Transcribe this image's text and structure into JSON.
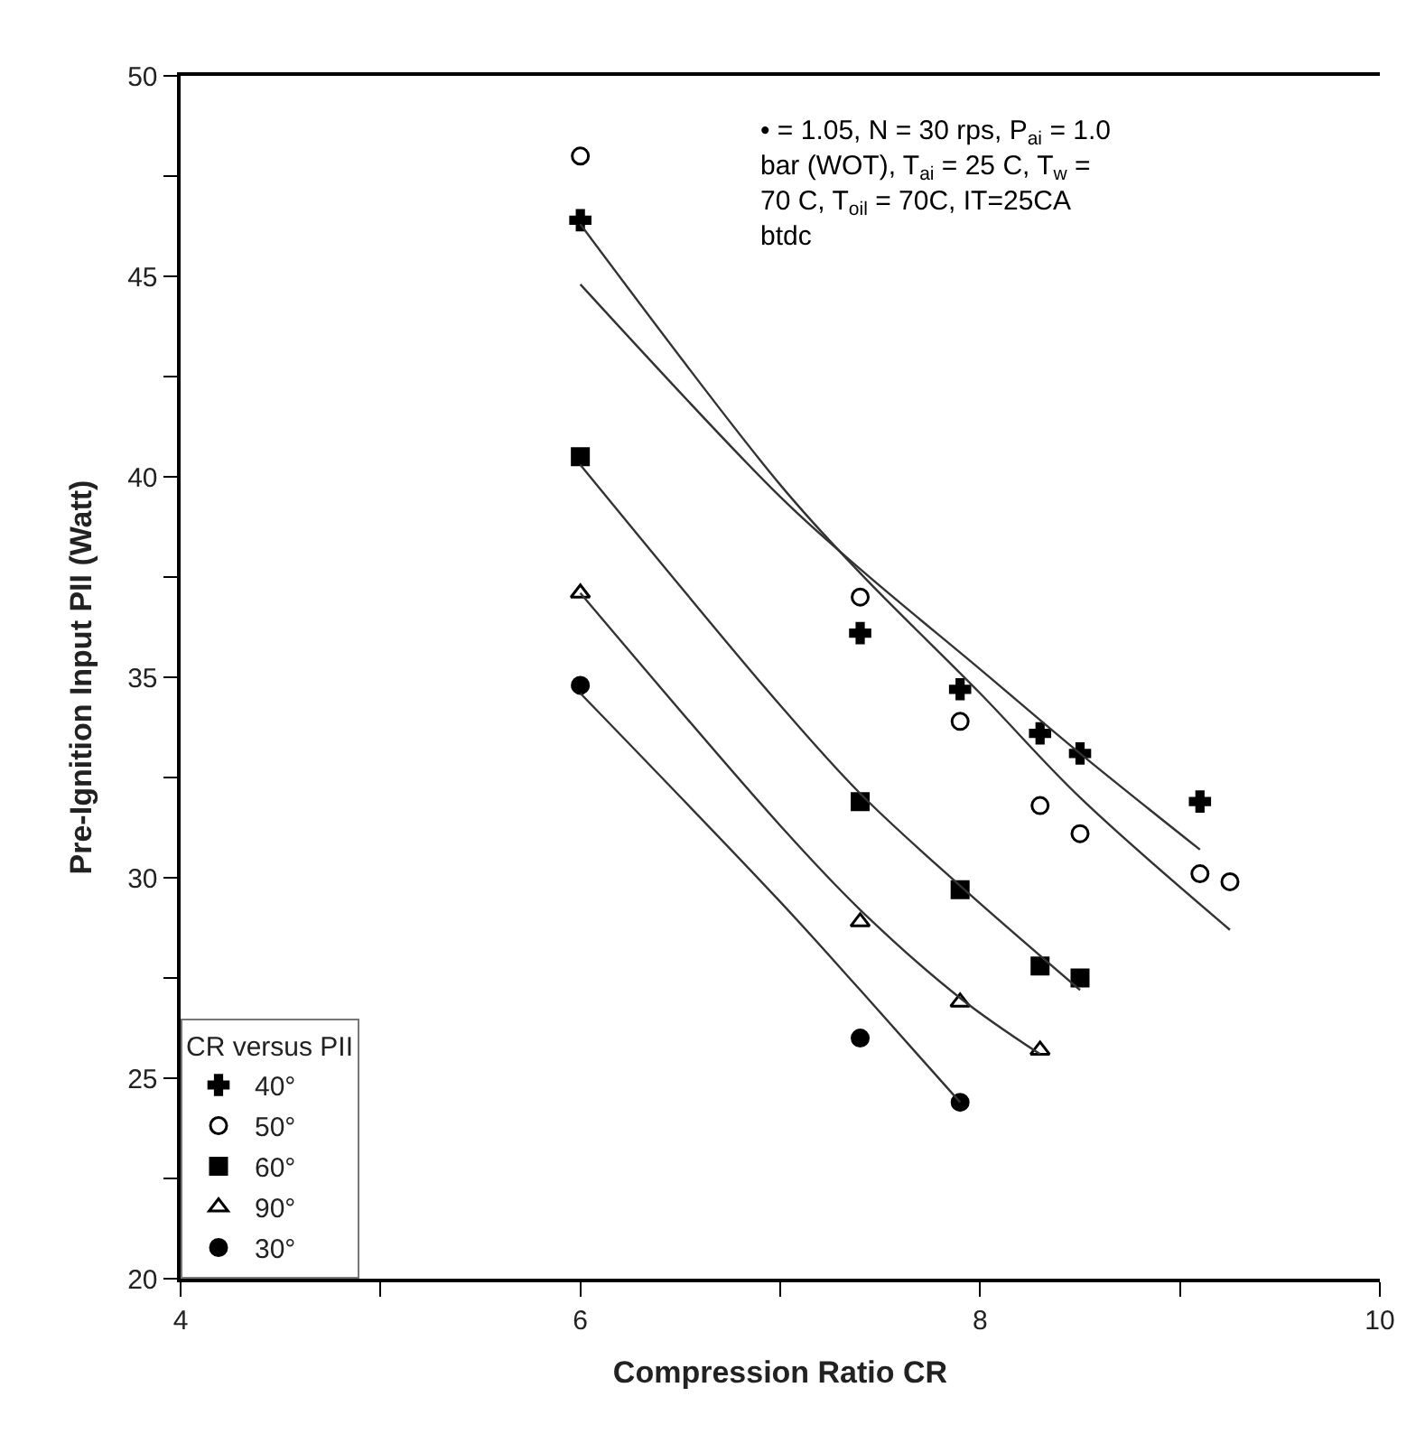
{
  "chart_data": {
    "type": "scatter",
    "xlabel": "Compression Ratio CR",
    "ylabel": "Pre-Ignition Input PII (Watt)",
    "legend_title": "CR versus PII",
    "legend": "bottom left",
    "annotations": [
      "• = 1.05, N = 30 rps, P$_{ai}$ = 1.0\nbar (WOT), T$_{ai}$ = 25 C, T$_{w}$ =\n70 C, T$_{oil}$ = 70C, IT=25CA\nbtdc"
    ],
    "xlim": [
      4,
      10
    ],
    "xticks": [
      4,
      {
        "value": 5,
        "label": null
      },
      6,
      {
        "value": 7,
        "label": null
      },
      8,
      {
        "value": 9,
        "label": null
      },
      10
    ],
    "ylim": [
      20,
      50
    ],
    "yticks": [
      20,
      {
        "value": 22.5,
        "label": null
      },
      25,
      {
        "value": 27.5,
        "label": null
      },
      30,
      {
        "value": 32.5,
        "label": null
      },
      35,
      {
        "value": 37.5,
        "label": null
      },
      40,
      {
        "value": 42.5,
        "label": null
      },
      45,
      {
        "value": 47.5,
        "label": null
      },
      50
    ],
    "series": [
      {
        "name": "40°",
        "color": "#000000",
        "marker": "cross",
        "x": [
          6,
          7.4,
          7.9,
          8.3,
          8.5,
          9.1
        ],
        "values": [
          46.4,
          36.1,
          34.7,
          33.6,
          33.1,
          31.9
        ]
      },
      {
        "name": "50°",
        "color": "#000000",
        "marker": "circle-open",
        "x": [
          6,
          7.4,
          7.9,
          8.3,
          8.5,
          9.1,
          9.25
        ],
        "values": [
          48.0,
          37.0,
          33.9,
          31.8,
          31.1,
          30.1,
          29.9
        ]
      },
      {
        "name": "60°",
        "color": "#000000",
        "marker": "square",
        "x": [
          6,
          7.4,
          7.9,
          8.3,
          8.5
        ],
        "values": [
          40.5,
          31.9,
          29.7,
          27.8,
          27.5
        ]
      },
      {
        "name": "90°",
        "color": "#000000",
        "marker": "triangle-open",
        "x": [
          6,
          7.4,
          7.9,
          8.3
        ],
        "values": [
          37.1,
          28.9,
          26.9,
          25.7
        ]
      },
      {
        "name": "30°",
        "color": "#000000",
        "marker": "circle",
        "x": [
          6,
          7.4,
          7.9
        ],
        "values": [
          34.8,
          26.0,
          24.4
        ]
      },
      {
        "type": "line",
        "color": "#333333",
        "marker": "none",
        "x": [
          6,
          7,
          7.4,
          8,
          8.5,
          9.1
        ],
        "values": [
          44.8,
          39.5,
          37.7,
          35.2,
          33.1,
          30.7
        ]
      },
      {
        "type": "line",
        "color": "#333333",
        "marker": "none",
        "x": [
          6,
          7,
          7.4,
          8,
          8.5,
          9.25
        ],
        "values": [
          46.3,
          39.8,
          37.6,
          34.6,
          32.0,
          28.7
        ]
      },
      {
        "type": "line",
        "color": "#333333",
        "marker": "none",
        "x": [
          6,
          7,
          7.4,
          7.9,
          8.5
        ],
        "values": [
          40.3,
          34.3,
          32.1,
          29.8,
          27.2
        ]
      },
      {
        "type": "line",
        "color": "#333333",
        "marker": "none",
        "x": [
          6,
          7,
          7.4,
          7.9,
          8.3
        ],
        "values": [
          37.1,
          31.3,
          29.2,
          27.0,
          25.6
        ]
      },
      {
        "type": "line",
        "color": "#333333",
        "marker": "none",
        "x": [
          6,
          7,
          7.4,
          7.9
        ],
        "values": [
          34.6,
          29.4,
          27.2,
          24.4
        ]
      }
    ]
  }
}
